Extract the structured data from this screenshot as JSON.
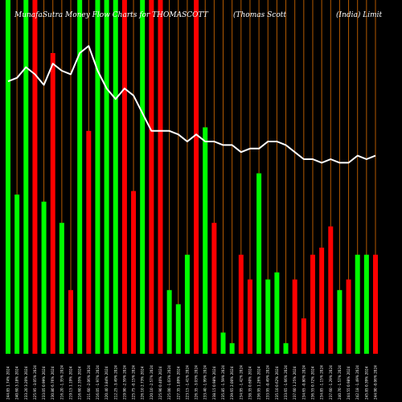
{
  "chart_data": {
    "type": "bar",
    "title_left": "MunafaSutra  Money Flow  Charts for THOMASCOTT",
    "title_mid": "(Thomas Scott",
    "title_right": "(India) Limit",
    "colors": {
      "background": "#000000",
      "up": "#00ff00",
      "down": "#ff0000",
      "grid": "#b35900",
      "line": "#ffffff"
    },
    "ylim": [
      0,
      100
    ],
    "categories": [
      "244.85 1.74% 2024",
      "240.60 3.18% 2024",
      "233.20 3.20% 2024",
      "225.95 -3.05% 2024",
      "233.05 0.99% 2024",
      "230.80 6.76% 2024",
      "216.20 -1.35% 2024",
      "219.15 1.19% 2024",
      "216.60 2.35% 2024",
      "211.60 -2.06% 2024",
      "216.05 -1.97% 2024",
      "220.40 3.84% 2024",
      "212.25 -3.49% 2024",
      "219.90 -2.59% 2024",
      "225.75 -0.15% 2024",
      "226.10 2.73% 2024",
      "220.10 -2.57% 2024",
      "225.90 0.40% 2024",
      "225.00 -1.03% 2024",
      "227.35 1.89% 2024",
      "223.15 -1.41% 2024",
      "226.35 -3.03% 2024",
      "233.40 -1.99% 2024",
      "238.15 0.98% 2024",
      "235.85 -1.59% 2024",
      "239.65 2.00% 2024",
      "234.95 -1.42% 2024",
      "238.35 0.60% 2024",
      "236.95 1.26% 2024",
      "233.95 -0.49% 2024",
      "235.10 0.62% 2024",
      "233.65 -1.66% 2024",
      "237.60 1.25% 2024",
      "234.65 -0.80% 2024",
      "236.55 0.72% 2024",
      "234.85 -1.15% 2024",
      "237.60 -1.29% 2024",
      "240.70 -1.57% 2024",
      "244.55 0.98% 2024",
      "242.18 -1.49% 2024",
      "245.85 0.39% 2024",
      "244.90 -0.06% 2024"
    ],
    "series": [
      {
        "volume": [
          100,
          45,
          100,
          100,
          43,
          85,
          37,
          18,
          100,
          63,
          100,
          100,
          100,
          100,
          46,
          100,
          100,
          100,
          18,
          14,
          28,
          100,
          64,
          37,
          6,
          3,
          28,
          21,
          51,
          21,
          23,
          3,
          21,
          10,
          28,
          30,
          36,
          18,
          21,
          28,
          28,
          28
        ],
        "direction": [
          "up",
          "up",
          "up",
          "down",
          "up",
          "down",
          "up",
          "down",
          "up",
          "down",
          "up",
          "up",
          "up",
          "down",
          "down",
          "up",
          "down",
          "down",
          "up",
          "up",
          "up",
          "down",
          "up",
          "down",
          "up",
          "up",
          "down",
          "down",
          "up",
          "up",
          "up",
          "up",
          "down",
          "down",
          "down",
          "down",
          "down",
          "up",
          "down",
          "up",
          "up",
          "down"
        ],
        "money_flow_line": [
          77,
          78,
          81,
          79,
          76,
          82,
          80,
          79,
          85,
          87,
          80,
          75,
          72,
          75,
          73,
          68,
          63,
          63,
          63,
          62,
          60,
          62,
          60,
          60,
          59,
          59,
          57,
          58,
          58,
          60,
          60,
          59,
          57,
          55,
          55,
          54,
          55,
          54,
          54,
          56,
          55,
          56
        ]
      }
    ]
  }
}
